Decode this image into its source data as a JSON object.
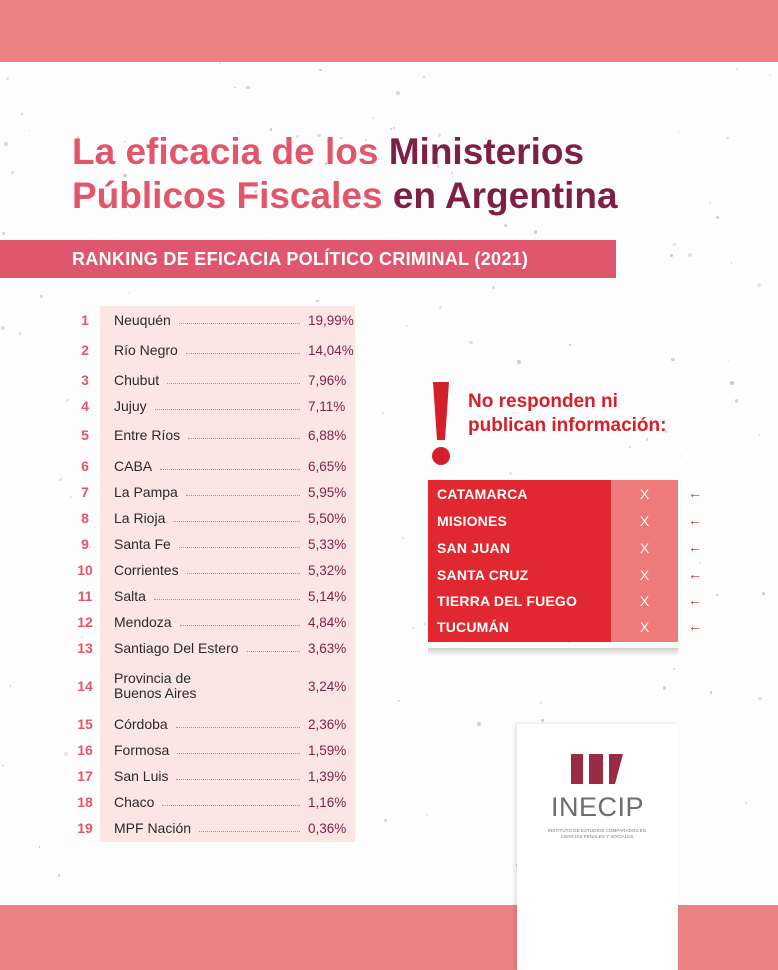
{
  "title": {
    "line1_pink": "La eficacia de los",
    "line1_dark": "Ministerios",
    "line2_pink": "Públicos Fiscales",
    "line2_dark": "en Argentina"
  },
  "subtitle": "RANKING DE EFICACIA POLÍTICO CRIMINAL (2021)",
  "ranking": [
    {
      "rank": "1",
      "name": "Neuquén",
      "value": "19,99%"
    },
    {
      "rank": "2",
      "name": "Río Negro",
      "value": "14,04%"
    },
    {
      "rank": "3",
      "name": "Chubut",
      "value": "7,96%"
    },
    {
      "rank": "4",
      "name": "Jujuy",
      "value": "7,11%"
    },
    {
      "rank": "5",
      "name": "Entre Ríos",
      "value": "6,88%"
    },
    {
      "rank": "6",
      "name": "CABA",
      "value": "6,65%"
    },
    {
      "rank": "7",
      "name": "La Pampa",
      "value": "5,95%"
    },
    {
      "rank": "8",
      "name": "La Rioja",
      "value": "5,50%"
    },
    {
      "rank": "9",
      "name": "Santa Fe",
      "value": "5,33%"
    },
    {
      "rank": "10",
      "name": "Corrientes",
      "value": "5,32%"
    },
    {
      "rank": "11",
      "name": "Salta",
      "value": "5,14%"
    },
    {
      "rank": "12",
      "name": "Mendoza",
      "value": "4,84%"
    },
    {
      "rank": "13",
      "name": "Santiago Del Estero",
      "value": "3,63%"
    },
    {
      "rank": "14",
      "name": "Provincia de Buenos Aires",
      "value": "3,24%"
    },
    {
      "rank": "15",
      "name": "Córdoba",
      "value": "2,36%"
    },
    {
      "rank": "16",
      "name": "Formosa",
      "value": "1,59%"
    },
    {
      "rank": "17",
      "name": "San Luis",
      "value": "1,39%"
    },
    {
      "rank": "18",
      "name": "Chaco",
      "value": "1,16%"
    },
    {
      "rank": "19",
      "name": "MPF Nación",
      "value": "0,36%"
    }
  ],
  "no_response": {
    "heading": "No responden ni publican información:",
    "mark": "X",
    "arrow_icon": "arrow-left-icon",
    "items": [
      "CATAMARCA",
      "MISIONES",
      "SAN JUAN",
      "SANTA CRUZ",
      "TIERRA DEL FUEGO",
      "TUCUMÁN"
    ]
  },
  "logo": {
    "name": "INECIP",
    "tagline": "INSTITUTO DE ESTUDIOS COMPARADOS EN CIENCIAS PENALES Y SOCIALES"
  },
  "colors": {
    "band": "#ec8282",
    "pink": "#e2566b",
    "dark": "#7e1f47",
    "red": "#e1272f",
    "salmon_cell": "#ef7a7a",
    "ranking_bg": "#fbe6e4",
    "logo_bar": "#9b2a44"
  }
}
